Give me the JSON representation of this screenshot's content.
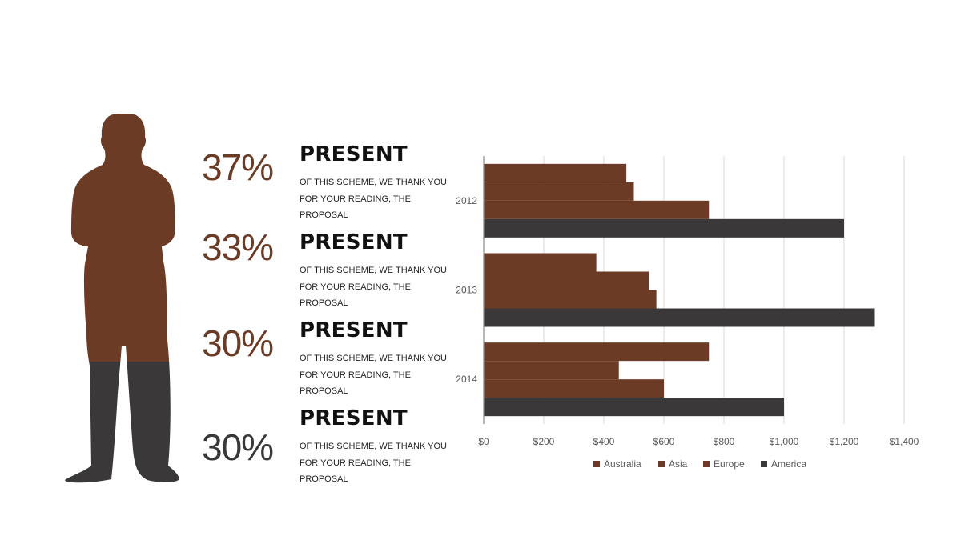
{
  "colors": {
    "brown": "#6b3b26",
    "dark": "#3a3838",
    "grid": "#d9d9d9",
    "axis": "#595959"
  },
  "stats": [
    {
      "value": "37%",
      "title": "PRESENT",
      "text": "OF THIS SCHEME, WE THANK YOU FOR YOUR READING, THE PROPOSAL",
      "color": "#6b3b26"
    },
    {
      "value": "33%",
      "title": "PRESENT",
      "text": "OF THIS SCHEME, WE THANK YOU FOR YOUR READING, THE PROPOSAL",
      "color": "#6b3b26"
    },
    {
      "value": "30%",
      "title": "PRESENT",
      "text": "OF THIS SCHEME, WE THANK YOU FOR YOUR READING, THE PROPOSAL",
      "color": "#6b3b26"
    },
    {
      "value": "30%",
      "title": "PRESENT",
      "text": "OF THIS SCHEME, WE THANK YOU FOR YOUR READING, THE PROPOSAL",
      "color": "#3a3838"
    }
  ],
  "chart_data": {
    "type": "bar",
    "orientation": "horizontal",
    "categories": [
      "2012",
      "2013",
      "2014"
    ],
    "series": [
      {
        "name": "Australia",
        "color": "#6b3b26",
        "values": [
          475,
          375,
          750
        ]
      },
      {
        "name": "Asia",
        "color": "#6b3b26",
        "values": [
          500,
          550,
          450
        ]
      },
      {
        "name": "Europe",
        "color": "#6b3b26",
        "values": [
          750,
          575,
          600
        ]
      },
      {
        "name": "America",
        "color": "#3a3838",
        "values": [
          1200,
          1300,
          1000
        ]
      }
    ],
    "xlim": [
      0,
      1400
    ],
    "xticks": [
      "$0",
      "$200",
      "$400",
      "$600",
      "$800",
      "$1,000",
      "$1,200",
      "$1,400"
    ],
    "grid": true,
    "legend": "bottom"
  }
}
